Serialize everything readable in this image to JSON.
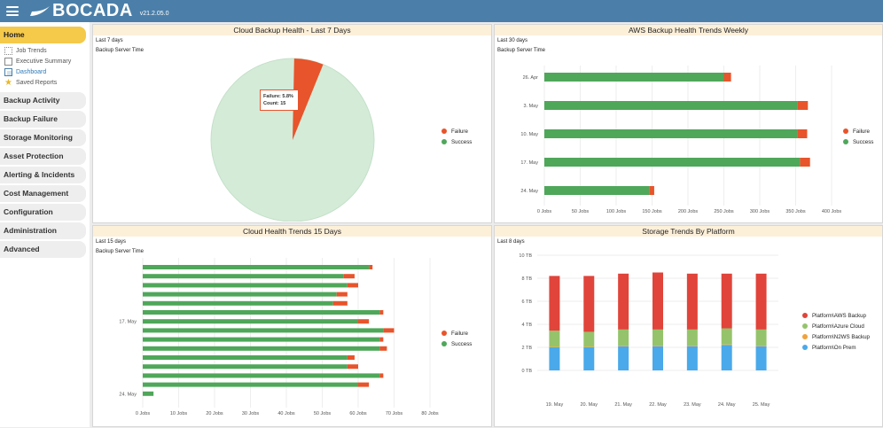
{
  "app": {
    "brand": "BOCADA",
    "version": "v21.2.05.0"
  },
  "sidebar": {
    "home": "Home",
    "sub_items": [
      "Job Trends",
      "Executive Summary",
      "Dashboard",
      "Saved Reports"
    ],
    "items": [
      "Backup Activity",
      "Backup Failure",
      "Storage Monitoring",
      "Asset Protection",
      "Alerting & Incidents",
      "Cost Management",
      "Configuration",
      "Administration",
      "Advanced"
    ]
  },
  "colors": {
    "failure": "#e8542b",
    "success": "#4fa75a",
    "topbar": "#4b7fa9",
    "aws": "#e0443a",
    "azure": "#95c36b",
    "n2ws": "#f0a23c",
    "onprem": "#49a9ea"
  },
  "panels": {
    "p1": {
      "title": "Cloud Backup Health - Last 7 Days",
      "range": "Last 7 days",
      "sub": "Backup Server Time",
      "legend": [
        "Failure",
        "Success"
      ],
      "tooltip_line1": "Failure: 5.8%",
      "tooltip_line2": "Count: 15"
    },
    "p2": {
      "title": "AWS Backup Health Trends Weekly",
      "range": "Last 30 days",
      "sub": "Backup Server Time",
      "legend": [
        "Failure",
        "Success"
      ]
    },
    "p3": {
      "title": "Cloud Health Trends 15 Days",
      "range": "Last 15 days",
      "sub": "Backup Server Time",
      "legend": [
        "Failure",
        "Success"
      ]
    },
    "p4": {
      "title": "Storage Trends By Platform",
      "range": "Last 8 days",
      "legend": [
        "Platform\\AWS Backup",
        "Platform\\Azure Cloud",
        "Platform\\N2WS Backup",
        "Platform\\On Prem"
      ]
    }
  },
  "chart_data": [
    {
      "type": "pie",
      "title": "Cloud Backup Health - Last 7 Days",
      "slices": [
        {
          "name": "Failure",
          "percent": 5.8,
          "count": 15
        },
        {
          "name": "Success",
          "percent": 94.2
        }
      ]
    },
    {
      "type": "bar",
      "orientation": "horizontal",
      "stacked": true,
      "title": "AWS Backup Health Trends Weekly",
      "categories": [
        "26. Apr",
        "3. May",
        "10. May",
        "17. May",
        "24. May"
      ],
      "xlim": [
        0,
        400
      ],
      "xticks": [
        "0 Jobs",
        "50 Jobs",
        "100 Jobs",
        "150 Jobs",
        "200 Jobs",
        "250 Jobs",
        "300 Jobs",
        "350 Jobs",
        "400 Jobs"
      ],
      "series": [
        {
          "name": "Success",
          "values": [
            250,
            353,
            352,
            356,
            146
          ]
        },
        {
          "name": "Failure",
          "values": [
            10,
            14,
            14,
            14,
            7
          ]
        }
      ]
    },
    {
      "type": "bar",
      "orientation": "horizontal",
      "stacked": true,
      "title": "Cloud Health Trends 15 Days",
      "categories": [
        "",
        "",
        "",
        "",
        "",
        "",
        "17. May",
        "",
        "",
        "",
        "",
        "",
        "",
        "",
        "24. May",
        ""
      ],
      "xlim": [
        0,
        80
      ],
      "xticks": [
        "0 Jobs",
        "10 Jobs",
        "20 Jobs",
        "30 Jobs",
        "40 Jobs",
        "50 Jobs",
        "60 Jobs",
        "70 Jobs",
        "80 Jobs"
      ],
      "series": [
        {
          "name": "Success",
          "values": [
            63,
            56,
            57,
            54,
            53,
            66,
            60,
            67,
            66,
            66,
            57,
            57,
            66,
            60,
            3,
            0
          ]
        },
        {
          "name": "Failure",
          "values": [
            1,
            3,
            3,
            3,
            4,
            1,
            3,
            3,
            1,
            2,
            2,
            3,
            1,
            3,
            0,
            0
          ]
        }
      ]
    },
    {
      "type": "bar",
      "stacked": true,
      "title": "Storage Trends By Platform",
      "categories": [
        "19. May",
        "20. May",
        "21. May",
        "22. May",
        "23. May",
        "24. May",
        "25. May"
      ],
      "ylim": [
        0,
        10
      ],
      "yticks": [
        "0 TB",
        "2 TB",
        "4 TB",
        "6 TB",
        "8 TB",
        "10 TB"
      ],
      "series": [
        {
          "name": "Platform\\On Prem",
          "values": [
            2.0,
            2.0,
            2.1,
            2.1,
            2.1,
            2.2,
            2.1
          ]
        },
        {
          "name": "Platform\\N2WS Backup",
          "values": [
            0.05,
            0.05,
            0.05,
            0.05,
            0.05,
            0.05,
            0.05
          ]
        },
        {
          "name": "Platform\\Azure Cloud",
          "values": [
            1.4,
            1.3,
            1.4,
            1.4,
            1.4,
            1.4,
            1.4
          ]
        },
        {
          "name": "Platform\\AWS Backup",
          "values": [
            4.75,
            4.85,
            4.85,
            4.95,
            4.85,
            4.75,
            4.85
          ]
        }
      ]
    }
  ]
}
